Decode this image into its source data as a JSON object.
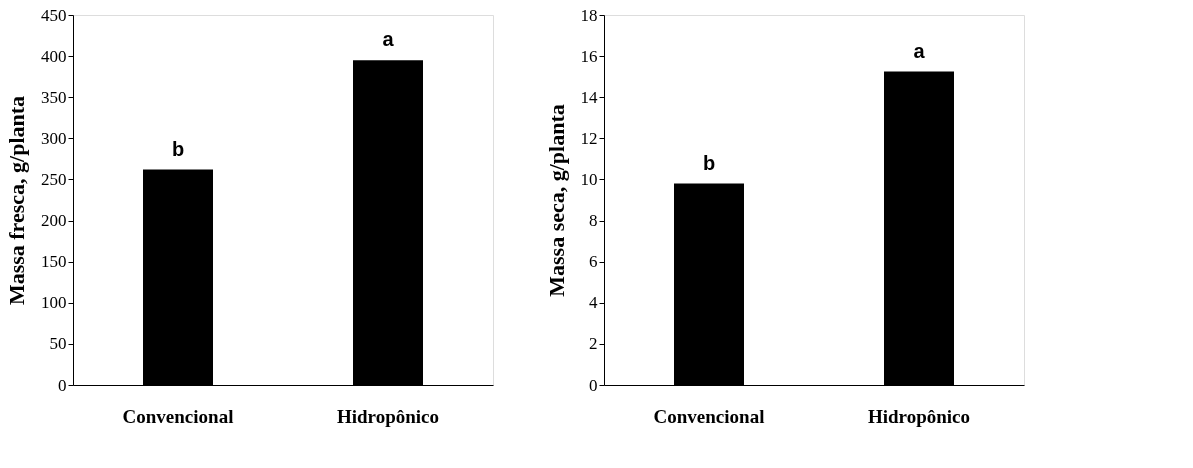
{
  "chart_data": [
    {
      "type": "bar",
      "categories": [
        "Convencional",
        "Hidropônico"
      ],
      "ylabel": "Massa fresca, g/planta",
      "series": [
        {
          "color": "#000000",
          "values": [
            262,
            395
          ]
        }
      ],
      "ylim": [
        0,
        450
      ],
      "yticks": [
        0,
        50,
        100,
        150,
        200,
        250,
        300,
        350,
        400,
        450
      ],
      "grid": false,
      "annotations": [
        {
          "text": "b",
          "x": "Convencional",
          "y": 262
        },
        {
          "text": "a",
          "x": "Hidropônico",
          "y": 395
        }
      ]
    },
    {
      "type": "bar",
      "categories": [
        "Convencional",
        "Hidropônico"
      ],
      "ylabel": "Massa seca, g/planta",
      "series": [
        {
          "color": "#000000",
          "values": [
            9.8,
            15.25
          ]
        }
      ],
      "ylim": [
        0,
        18
      ],
      "yticks": [
        0,
        2,
        4,
        6,
        8,
        10,
        12,
        14,
        16,
        18
      ],
      "grid": false,
      "annotations": [
        {
          "text": "b",
          "x": "Convencional",
          "y": 9.8
        },
        {
          "text": "a",
          "x": "Hidropônico",
          "y": 15.25
        }
      ]
    }
  ]
}
